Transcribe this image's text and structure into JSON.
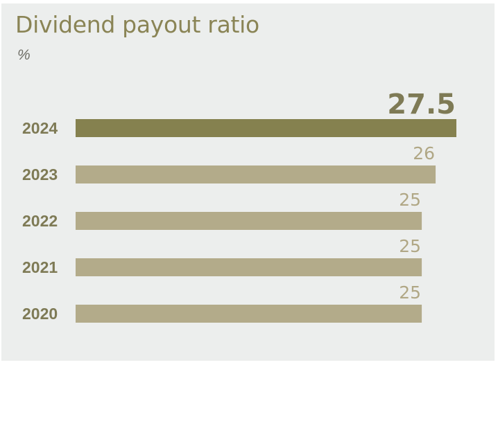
{
  "chart_data": {
    "type": "bar",
    "orientation": "horizontal",
    "title": "Dividend payout ratio",
    "unit": "%",
    "categories": [
      "2024",
      "2023",
      "2022",
      "2021",
      "2020"
    ],
    "values": [
      27.5,
      26,
      25,
      25,
      25
    ],
    "value_labels": [
      "27.5",
      "26",
      "25",
      "25",
      "25"
    ],
    "highlight_category": "2024",
    "xlim": [
      0,
      27.5
    ],
    "grid": false,
    "legend": "none"
  },
  "colors": {
    "background": "#eceeed",
    "title": "#8a8455",
    "highlight_bar": "#85814f",
    "bar": "#b3ab8a",
    "year_label": "#7e7a55",
    "highlight_value_label": "#7e7a55",
    "value_label": "#b0a785"
  }
}
